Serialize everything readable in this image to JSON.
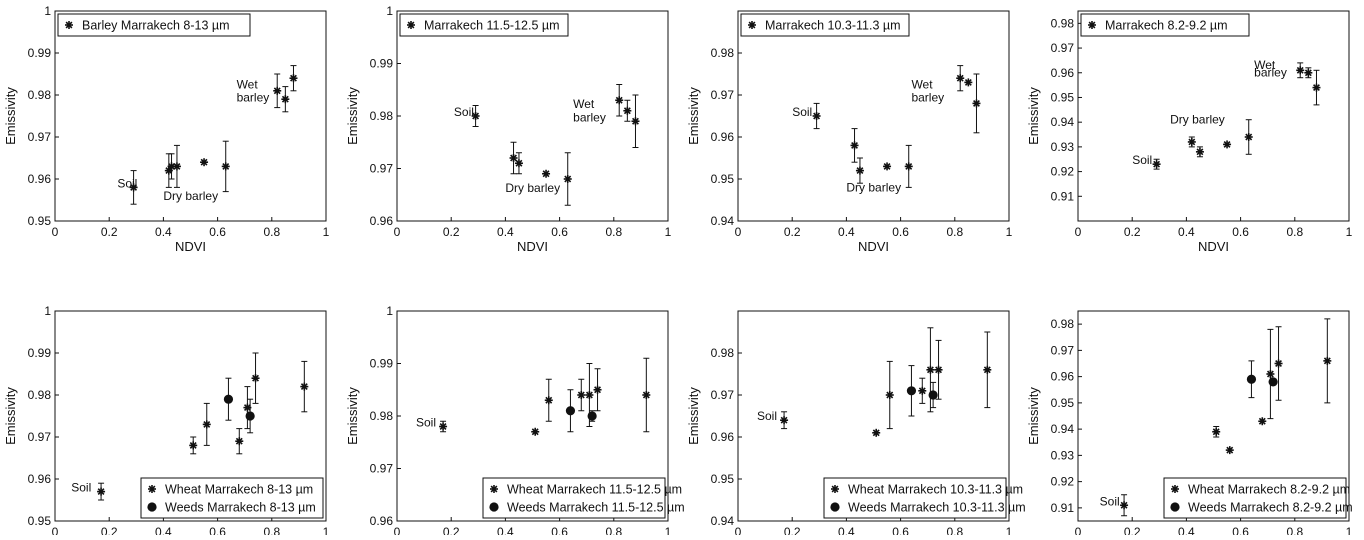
{
  "chart_data": [
    {
      "type": "scatter",
      "xlabel": "NDVI",
      "ylabel": "Emissivity",
      "xlim": [
        0,
        1
      ],
      "ylim": [
        0.95,
        1.0
      ],
      "xticks": [
        "0",
        "0.2",
        "0.4",
        "0.6",
        "0.8",
        "1"
      ],
      "yticks": [
        "0.95",
        "0.96",
        "0.97",
        "0.98",
        "0.99",
        "1"
      ],
      "legend_position": "top-left",
      "series": [
        {
          "name": "Barley Marrakech 8-13 µm",
          "marker": "asterisk",
          "points": [
            {
              "x": 0.29,
              "y": 0.958,
              "err": 0.004
            },
            {
              "x": 0.42,
              "y": 0.962,
              "err": 0.004
            },
            {
              "x": 0.43,
              "y": 0.963,
              "err": 0.003
            },
            {
              "x": 0.45,
              "y": 0.963,
              "err": 0.005
            },
            {
              "x": 0.55,
              "y": 0.964,
              "err": 0
            },
            {
              "x": 0.63,
              "y": 0.963,
              "err": 0.006
            },
            {
              "x": 0.82,
              "y": 0.981,
              "err": 0.004
            },
            {
              "x": 0.85,
              "y": 0.979,
              "err": 0.003
            },
            {
              "x": 0.88,
              "y": 0.984,
              "err": 0.003
            }
          ]
        }
      ],
      "annotations": [
        {
          "text": "Soil",
          "x": 0.23,
          "y": 0.958
        },
        {
          "text": "Dry barley",
          "x": 0.4,
          "y": 0.955
        },
        {
          "text": "Wet",
          "x": 0.67,
          "y": 0.9815
        },
        {
          "text": "barley",
          "x": 0.67,
          "y": 0.9785
        }
      ]
    },
    {
      "type": "scatter",
      "xlabel": "NDVI",
      "ylabel": "Emissivity",
      "xlim": [
        0,
        1
      ],
      "ylim": [
        0.96,
        1.0
      ],
      "xticks": [
        "0",
        "0.2",
        "0.4",
        "0.6",
        "0.8",
        "1"
      ],
      "yticks": [
        "0.96",
        "0.97",
        "0.98",
        "0.99",
        "1"
      ],
      "legend_position": "top-left",
      "series": [
        {
          "name": "Marrakech 11.5-12.5 µm",
          "marker": "asterisk",
          "points": [
            {
              "x": 0.29,
              "y": 0.98,
              "err": 0.002
            },
            {
              "x": 0.43,
              "y": 0.972,
              "err": 0.003
            },
            {
              "x": 0.45,
              "y": 0.971,
              "err": 0.002
            },
            {
              "x": 0.55,
              "y": 0.969,
              "err": 0
            },
            {
              "x": 0.63,
              "y": 0.968,
              "err": 0.005
            },
            {
              "x": 0.82,
              "y": 0.983,
              "err": 0.003
            },
            {
              "x": 0.85,
              "y": 0.981,
              "err": 0.002
            },
            {
              "x": 0.88,
              "y": 0.979,
              "err": 0.005
            }
          ]
        }
      ],
      "annotations": [
        {
          "text": "Soil",
          "x": 0.21,
          "y": 0.98
        },
        {
          "text": "Dry barley",
          "x": 0.4,
          "y": 0.9655
        },
        {
          "text": "Wet",
          "x": 0.65,
          "y": 0.9815
        },
        {
          "text": "barley",
          "x": 0.65,
          "y": 0.979
        }
      ]
    },
    {
      "type": "scatter",
      "xlabel": "NDVI",
      "ylabel": "Emissivity",
      "xlim": [
        0,
        1
      ],
      "ylim": [
        0.94,
        0.99
      ],
      "xticks": [
        "0",
        "0.2",
        "0.4",
        "0.6",
        "0.8",
        "1"
      ],
      "yticks": [
        "0.94",
        "0.95",
        "0.96",
        "0.97",
        "0.98"
      ],
      "legend_position": "top-left",
      "series": [
        {
          "name": "Marrakech 10.3-11.3 µm",
          "marker": "asterisk",
          "points": [
            {
              "x": 0.29,
              "y": 0.965,
              "err": 0.003
            },
            {
              "x": 0.43,
              "y": 0.958,
              "err": 0.004
            },
            {
              "x": 0.45,
              "y": 0.952,
              "err": 0.003
            },
            {
              "x": 0.55,
              "y": 0.953,
              "err": 0
            },
            {
              "x": 0.63,
              "y": 0.953,
              "err": 0.005
            },
            {
              "x": 0.82,
              "y": 0.974,
              "err": 0.003
            },
            {
              "x": 0.85,
              "y": 0.973,
              "err": 0
            },
            {
              "x": 0.88,
              "y": 0.968,
              "err": 0.007
            }
          ]
        }
      ],
      "annotations": [
        {
          "text": "Soil",
          "x": 0.2,
          "y": 0.965
        },
        {
          "text": "Dry barley",
          "x": 0.4,
          "y": 0.947
        },
        {
          "text": "Wet",
          "x": 0.64,
          "y": 0.9715
        },
        {
          "text": "barley",
          "x": 0.64,
          "y": 0.9685
        }
      ]
    },
    {
      "type": "scatter",
      "xlabel": "NDVI",
      "ylabel": "Emissivity",
      "xlim": [
        0,
        1
      ],
      "ylim": [
        0.9,
        0.985
      ],
      "xticks": [
        "0",
        "0.2",
        "0.4",
        "0.6",
        "0.8",
        "1"
      ],
      "yticks": [
        "0.91",
        "0.92",
        "0.93",
        "0.94",
        "0.95",
        "0.96",
        "0.97",
        "0.98"
      ],
      "legend_position": "top-left",
      "series": [
        {
          "name": "Marrakech 8.2-9.2 µm",
          "marker": "asterisk",
          "points": [
            {
              "x": 0.29,
              "y": 0.923,
              "err": 0.002
            },
            {
              "x": 0.42,
              "y": 0.932,
              "err": 0.002
            },
            {
              "x": 0.45,
              "y": 0.928,
              "err": 0.002
            },
            {
              "x": 0.55,
              "y": 0.931,
              "err": 0
            },
            {
              "x": 0.63,
              "y": 0.934,
              "err": 0.007
            },
            {
              "x": 0.82,
              "y": 0.961,
              "err": 0.003
            },
            {
              "x": 0.85,
              "y": 0.96,
              "err": 0.002
            },
            {
              "x": 0.88,
              "y": 0.954,
              "err": 0.007
            }
          ]
        }
      ],
      "annotations": [
        {
          "text": "Soil",
          "x": 0.2,
          "y": 0.923
        },
        {
          "text": "Dry barley",
          "x": 0.34,
          "y": 0.9395
        },
        {
          "text": "Wet",
          "x": 0.65,
          "y": 0.9615
        },
        {
          "text": "barley",
          "x": 0.65,
          "y": 0.9585
        }
      ]
    },
    {
      "type": "scatter",
      "xlabel": "NDVI",
      "ylabel": "Emissivity",
      "xlim": [
        0,
        1
      ],
      "ylim": [
        0.95,
        1.0
      ],
      "xticks": [
        "0",
        "0.2",
        "0.4",
        "0.6",
        "0.8",
        "1"
      ],
      "yticks": [
        "0.95",
        "0.96",
        "0.97",
        "0.98",
        "0.99",
        "1"
      ],
      "legend_position": "bottom-right",
      "series": [
        {
          "name": "Wheat Marrakech 8-13 µm",
          "marker": "asterisk",
          "points": [
            {
              "x": 0.17,
              "y": 0.957,
              "err": 0.002
            },
            {
              "x": 0.51,
              "y": 0.968,
              "err": 0.002
            },
            {
              "x": 0.56,
              "y": 0.973,
              "err": 0.005
            },
            {
              "x": 0.68,
              "y": 0.969,
              "err": 0.003
            },
            {
              "x": 0.71,
              "y": 0.977,
              "err": 0.005
            },
            {
              "x": 0.74,
              "y": 0.984,
              "err": 0.006
            },
            {
              "x": 0.92,
              "y": 0.982,
              "err": 0.006
            }
          ]
        },
        {
          "name": "Weeds Marrakech 8-13 µm",
          "marker": "circle",
          "points": [
            {
              "x": 0.64,
              "y": 0.979,
              "err": 0.005
            },
            {
              "x": 0.72,
              "y": 0.975,
              "err": 0.004
            }
          ]
        }
      ],
      "annotations": [
        {
          "text": "Soil",
          "x": 0.06,
          "y": 0.957
        }
      ]
    },
    {
      "type": "scatter",
      "xlabel": "NDVI",
      "ylabel": "Emissivity",
      "xlim": [
        0,
        1
      ],
      "ylim": [
        0.96,
        1.0
      ],
      "xticks": [
        "0",
        "0.2",
        "0.4",
        "0.6",
        "0.8",
        "1"
      ],
      "yticks": [
        "0.96",
        "0.97",
        "0.98",
        "0.99",
        "1"
      ],
      "legend_position": "bottom-right",
      "series": [
        {
          "name": "Wheat Marrakech 11.5-12.5 µm",
          "marker": "asterisk",
          "points": [
            {
              "x": 0.17,
              "y": 0.978,
              "err": 0.001
            },
            {
              "x": 0.51,
              "y": 0.977,
              "err": 0
            },
            {
              "x": 0.56,
              "y": 0.983,
              "err": 0.004
            },
            {
              "x": 0.68,
              "y": 0.984,
              "err": 0.003
            },
            {
              "x": 0.71,
              "y": 0.984,
              "err": 0.006
            },
            {
              "x": 0.74,
              "y": 0.985,
              "err": 0.004
            },
            {
              "x": 0.92,
              "y": 0.984,
              "err": 0.007
            }
          ]
        },
        {
          "name": "Weeds Marrakech 11.5-12.5 µm",
          "marker": "circle",
          "points": [
            {
              "x": 0.64,
              "y": 0.981,
              "err": 0.004
            },
            {
              "x": 0.72,
              "y": 0.98,
              "err": 0.001
            }
          ]
        }
      ],
      "annotations": [
        {
          "text": "Soil",
          "x": 0.07,
          "y": 0.978
        }
      ]
    },
    {
      "type": "scatter",
      "xlabel": "NDVI",
      "ylabel": "Emissivity",
      "xlim": [
        0,
        1
      ],
      "ylim": [
        0.94,
        0.99
      ],
      "xticks": [
        "0",
        "0.2",
        "0.4",
        "0.6",
        "0.8",
        "1"
      ],
      "yticks": [
        "0.94",
        "0.95",
        "0.96",
        "0.97",
        "0.98"
      ],
      "legend_position": "bottom-right",
      "series": [
        {
          "name": "Wheat Marrakech 10.3-11.3 µm",
          "marker": "asterisk",
          "points": [
            {
              "x": 0.17,
              "y": 0.964,
              "err": 0.002
            },
            {
              "x": 0.51,
              "y": 0.961,
              "err": 0
            },
            {
              "x": 0.56,
              "y": 0.97,
              "err": 0.008
            },
            {
              "x": 0.68,
              "y": 0.971,
              "err": 0.003
            },
            {
              "x": 0.71,
              "y": 0.976,
              "err": 0.01
            },
            {
              "x": 0.74,
              "y": 0.976,
              "err": 0.007
            },
            {
              "x": 0.92,
              "y": 0.976,
              "err": 0.009
            }
          ]
        },
        {
          "name": "Weeds Marrakech 10.3-11.3 µm",
          "marker": "circle",
          "points": [
            {
              "x": 0.64,
              "y": 0.971,
              "err": 0.006
            },
            {
              "x": 0.72,
              "y": 0.97,
              "err": 0.003
            }
          ]
        }
      ],
      "annotations": [
        {
          "text": "Soil",
          "x": 0.07,
          "y": 0.964
        }
      ]
    },
    {
      "type": "scatter",
      "xlabel": "NDVI",
      "ylabel": "Emissivity",
      "xlim": [
        0,
        1
      ],
      "ylim": [
        0.905,
        0.985
      ],
      "xticks": [
        "0",
        "0.2",
        "0.4",
        "0.6",
        "0.8",
        "1"
      ],
      "yticks": [
        "0.91",
        "0.92",
        "0.93",
        "0.94",
        "0.95",
        "0.96",
        "0.97",
        "0.98"
      ],
      "legend_position": "bottom-right",
      "series": [
        {
          "name": "Wheat Marrakech 8.2-9.2 µm",
          "marker": "asterisk",
          "points": [
            {
              "x": 0.17,
              "y": 0.911,
              "err": 0.004
            },
            {
              "x": 0.51,
              "y": 0.939,
              "err": 0.002
            },
            {
              "x": 0.56,
              "y": 0.932,
              "err": 0
            },
            {
              "x": 0.68,
              "y": 0.943,
              "err": 0
            },
            {
              "x": 0.71,
              "y": 0.961,
              "err": 0.017
            },
            {
              "x": 0.74,
              "y": 0.965,
              "err": 0.014
            },
            {
              "x": 0.92,
              "y": 0.966,
              "err": 0.016
            }
          ]
        },
        {
          "name": "Weeds Marrakech 8.2-9.2 µm",
          "marker": "circle",
          "points": [
            {
              "x": 0.64,
              "y": 0.959,
              "err": 0.007
            },
            {
              "x": 0.72,
              "y": 0.958,
              "err": 0.001
            }
          ]
        }
      ],
      "annotations": [
        {
          "text": "Soil",
          "x": 0.08,
          "y": 0.911
        }
      ]
    }
  ]
}
